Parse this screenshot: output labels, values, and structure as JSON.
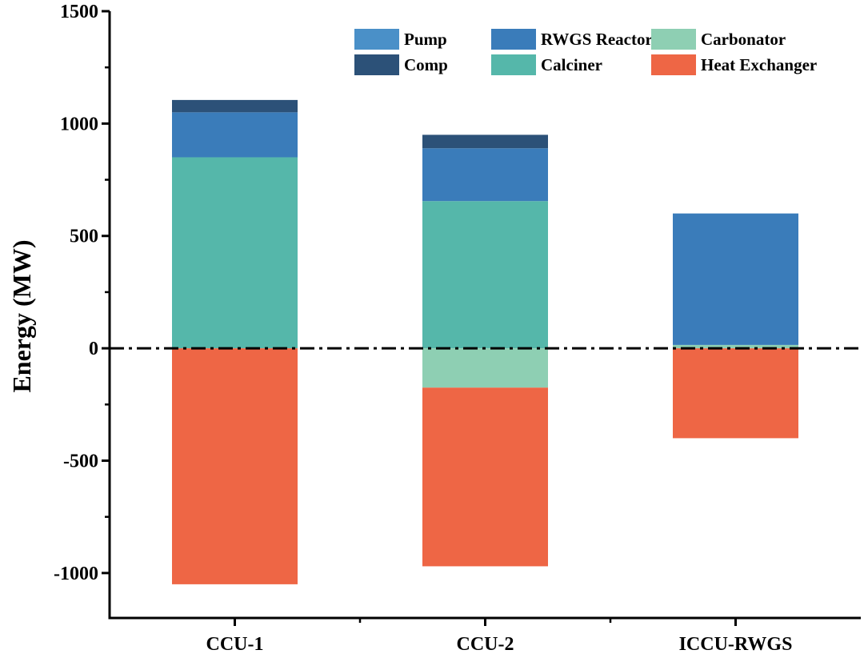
{
  "chart_data": {
    "type": "bar",
    "stacked": true,
    "title": "",
    "xlabel": "",
    "ylabel": "Energy (MW)",
    "ylim": [
      -1200,
      1500
    ],
    "yticks": [
      1500,
      1000,
      500,
      0,
      -500,
      -1000
    ],
    "ytick_labels": [
      "1500",
      "1000",
      "500",
      "0",
      "-500",
      "-1000"
    ],
    "categories": [
      "CCU-1",
      "CCU-2",
      "ICCU-RWGS"
    ],
    "zero_line": "dash-dot",
    "legend_position": "top-right",
    "series": [
      {
        "name": "Pump",
        "color": "#4a90c8",
        "values": [
          0,
          0,
          0
        ]
      },
      {
        "name": "Comp",
        "color": "#2c5178",
        "values": [
          55,
          60,
          0
        ]
      },
      {
        "name": "RWGS Reactor",
        "color": "#3a7cba",
        "values": [
          200,
          235,
          585
        ]
      },
      {
        "name": "Calciner",
        "color": "#55b7aa",
        "values": [
          850,
          655,
          0
        ]
      },
      {
        "name": "Carbonator",
        "color": "#8ecfb3",
        "values": [
          0,
          -175,
          15
        ]
      },
      {
        "name": "Heat Exchanger",
        "color": "#ee6645",
        "values": [
          -1050,
          -795,
          -400
        ]
      }
    ],
    "stack_order_positive": [
      "Carbonator",
      "Calciner",
      "RWGS Reactor",
      "Comp",
      "Pump"
    ],
    "stack_order_negative": [
      "Carbonator",
      "Heat Exchanger"
    ],
    "legend_layout": [
      [
        "Pump",
        "RWGS Reactor",
        "Carbonator"
      ],
      [
        "Comp",
        "Calciner",
        "Heat Exchanger"
      ]
    ]
  }
}
